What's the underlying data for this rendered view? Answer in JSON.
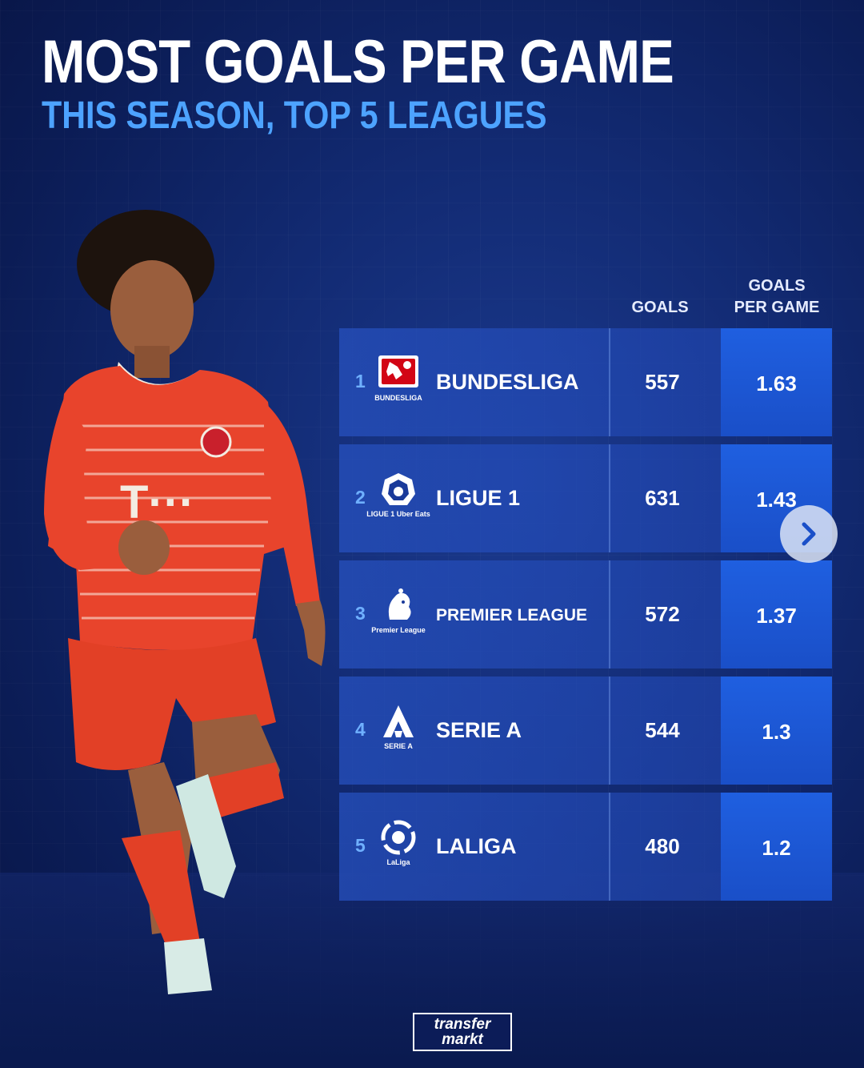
{
  "header": {
    "title": "MOST GOALS PER GAME",
    "subtitle": "THIS SEASON, TOP 5 LEAGUES"
  },
  "columns": {
    "goals": "GOALS",
    "gpg_line1": "GOALS",
    "gpg_line2": "PER GAME"
  },
  "rows": [
    {
      "rank": "1",
      "league": "BUNDESLIGA",
      "logo_caption": "BUNDESLIGA",
      "goals": "557",
      "gpg": "1.63"
    },
    {
      "rank": "2",
      "league": "LIGUE 1",
      "logo_caption": "LIGUE 1 Uber Eats",
      "goals": "631",
      "gpg": "1.43"
    },
    {
      "rank": "3",
      "league": "PREMIER LEAGUE",
      "logo_caption": "Premier League",
      "goals": "572",
      "gpg": "1.37"
    },
    {
      "rank": "4",
      "league": "SERIE A",
      "logo_caption": "SERIE A",
      "goals": "544",
      "gpg": "1.3"
    },
    {
      "rank": "5",
      "league": "LALIGA",
      "logo_caption": "LaLiga",
      "goals": "480",
      "gpg": "1.2"
    }
  ],
  "chart_data": {
    "type": "table",
    "title": "MOST GOALS PER GAME",
    "subtitle": "THIS SEASON, TOP 5 LEAGUES",
    "columns": [
      "",
      "GOALS",
      "GOALS PER GAME"
    ],
    "categories": [
      "BUNDESLIGA",
      "LIGUE 1",
      "PREMIER LEAGUE",
      "SERIE A",
      "LALIGA"
    ],
    "series": [
      {
        "name": "GOALS",
        "values": [
          557,
          631,
          572,
          544,
          480
        ]
      },
      {
        "name": "GOALS PER GAME",
        "values": [
          1.63,
          1.43,
          1.37,
          1.3,
          1.2
        ]
      }
    ]
  },
  "brand": {
    "line1": "transfer",
    "line2": "markt"
  },
  "colors": {
    "accent": "#4da3ff",
    "highlight": "#1f5fe0",
    "background": "#122a72",
    "kit": "#e8442c"
  },
  "icons": {
    "next": "chevron-right-icon"
  }
}
